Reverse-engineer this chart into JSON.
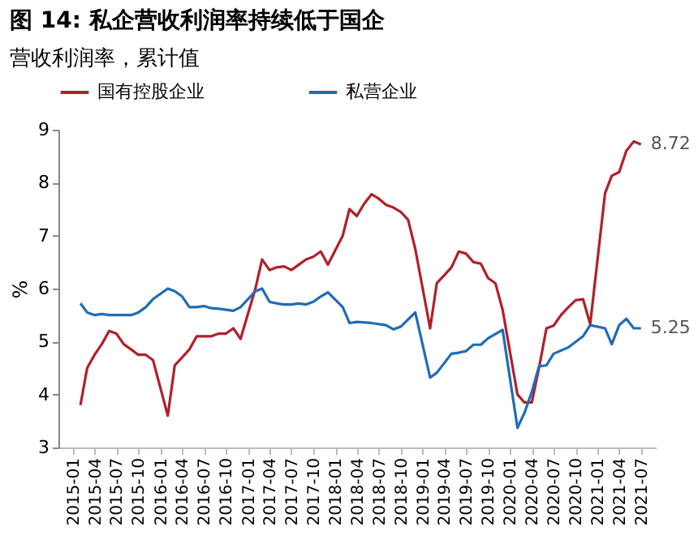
{
  "chart_data": {
    "type": "line",
    "title": "图 14: 私企营收利润率持续低于国企",
    "subtitle": "营收利润率，累计值",
    "ylabel": "%",
    "xlim": [
      "2014-11",
      "2021-09"
    ],
    "xticks": [
      "2015-01",
      "2015-04",
      "2015-07",
      "2015-10",
      "2016-01",
      "2016-04",
      "2016-07",
      "2016-10",
      "2017-01",
      "2017-04",
      "2017-07",
      "2017-10",
      "2018-01",
      "2018-04",
      "2018-07",
      "2018-10",
      "2019-01",
      "2019-04",
      "2019-07",
      "2019-10",
      "2020-01",
      "2020-04",
      "2020-07",
      "2020-10",
      "2021-01",
      "2021-04",
      "2021-07"
    ],
    "ylim": [
      3,
      9
    ],
    "yticks": [
      3,
      4,
      5,
      6,
      7,
      8,
      9
    ],
    "grid": false,
    "legend": "top",
    "marker": "none",
    "line_style": "solid",
    "series": [
      {
        "name": "国有控股企业",
        "color": "#b0202a",
        "x": [
          "2015-02",
          "2015-03",
          "2015-04",
          "2015-05",
          "2015-06",
          "2015-07",
          "2015-08",
          "2015-09",
          "2015-10",
          "2015-11",
          "2015-12",
          "2016-02",
          "2016-03",
          "2016-04",
          "2016-05",
          "2016-06",
          "2016-07",
          "2016-08",
          "2016-09",
          "2016-10",
          "2016-11",
          "2016-12",
          "2017-02",
          "2017-03",
          "2017-04",
          "2017-05",
          "2017-06",
          "2017-07",
          "2017-08",
          "2017-09",
          "2017-10",
          "2017-11",
          "2017-12",
          "2018-02",
          "2018-03",
          "2018-04",
          "2018-05",
          "2018-06",
          "2018-07",
          "2018-08",
          "2018-09",
          "2018-10",
          "2018-11",
          "2018-12",
          "2019-02",
          "2019-03",
          "2019-04",
          "2019-05",
          "2019-06",
          "2019-07",
          "2019-08",
          "2019-09",
          "2019-10",
          "2019-11",
          "2019-12",
          "2020-02",
          "2020-03",
          "2020-04",
          "2020-05",
          "2020-06",
          "2020-07",
          "2020-08",
          "2020-09",
          "2020-10",
          "2020-11",
          "2020-12",
          "2021-02",
          "2021-03",
          "2021-04",
          "2021-05",
          "2021-06",
          "2021-07"
        ],
        "values": [
          3.8,
          4.5,
          4.75,
          4.95,
          5.2,
          5.15,
          4.95,
          4.85,
          4.75,
          4.75,
          4.65,
          3.6,
          4.55,
          4.7,
          4.85,
          5.1,
          5.1,
          5.1,
          5.15,
          5.15,
          5.25,
          5.05,
          6.0,
          6.55,
          6.35,
          6.4,
          6.42,
          6.35,
          6.45,
          6.55,
          6.6,
          6.7,
          6.45,
          7.0,
          7.5,
          7.37,
          7.6,
          7.78,
          7.7,
          7.58,
          7.53,
          7.45,
          7.3,
          6.75,
          5.25,
          6.1,
          6.25,
          6.4,
          6.7,
          6.66,
          6.5,
          6.47,
          6.2,
          6.1,
          5.6,
          4.0,
          3.85,
          3.85,
          4.5,
          5.25,
          5.3,
          5.5,
          5.65,
          5.78,
          5.8,
          5.33,
          7.8,
          8.13,
          8.2,
          8.6,
          8.78,
          8.72
        ]
      },
      {
        "name": "私营企业",
        "color": "#1f6cb5",
        "x": [
          "2015-02",
          "2015-03",
          "2015-04",
          "2015-05",
          "2015-06",
          "2015-07",
          "2015-08",
          "2015-09",
          "2015-10",
          "2015-11",
          "2015-12",
          "2016-02",
          "2016-03",
          "2016-04",
          "2016-05",
          "2016-06",
          "2016-07",
          "2016-08",
          "2016-09",
          "2016-10",
          "2016-11",
          "2016-12",
          "2017-02",
          "2017-03",
          "2017-04",
          "2017-05",
          "2017-06",
          "2017-07",
          "2017-08",
          "2017-09",
          "2017-10",
          "2017-11",
          "2017-12",
          "2018-02",
          "2018-03",
          "2018-04",
          "2018-06",
          "2018-08",
          "2018-09",
          "2018-10",
          "2018-12",
          "2019-02",
          "2019-03",
          "2019-05",
          "2019-06",
          "2019-07",
          "2019-08",
          "2019-09",
          "2019-10",
          "2019-12",
          "2020-02",
          "2020-03",
          "2020-04",
          "2020-05",
          "2020-06",
          "2020-07",
          "2020-09",
          "2020-11",
          "2020-12",
          "2021-02",
          "2021-03",
          "2021-04",
          "2021-05",
          "2021-06",
          "2021-07"
        ],
        "values": [
          5.72,
          5.55,
          5.5,
          5.52,
          5.5,
          5.5,
          5.5,
          5.5,
          5.55,
          5.65,
          5.8,
          6.0,
          5.95,
          5.85,
          5.65,
          5.65,
          5.67,
          5.63,
          5.62,
          5.6,
          5.58,
          5.65,
          5.95,
          6.0,
          5.75,
          5.72,
          5.7,
          5.7,
          5.72,
          5.7,
          5.75,
          5.85,
          5.93,
          5.65,
          5.35,
          5.37,
          5.35,
          5.31,
          5.23,
          5.28,
          5.55,
          4.32,
          4.41,
          4.77,
          4.79,
          4.82,
          4.94,
          4.94,
          5.06,
          5.22,
          3.37,
          3.65,
          4.05,
          4.53,
          4.55,
          4.77,
          4.89,
          5.1,
          5.31,
          5.25,
          4.95,
          5.31,
          5.43,
          5.25,
          5.25
        ]
      }
    ],
    "annotations": [
      {
        "text": "8.72",
        "x": "2021-07",
        "y": 8.72
      },
      {
        "text": "5.25",
        "x": "2021-07",
        "y": 5.25
      }
    ]
  }
}
